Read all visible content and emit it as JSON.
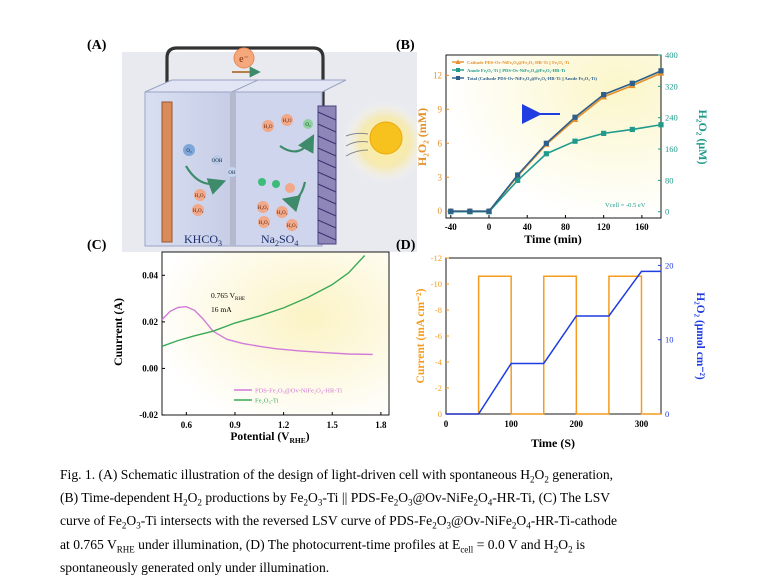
{
  "panels": {
    "A": {
      "label": "(A)",
      "electron": "e⁻",
      "left_electrolyte": "KHCO",
      "left_electrolyte_sub": "3",
      "right_electrolyte": "Na",
      "right_electrolyte_sub1": "2",
      "right_electrolyte_mid": "SO",
      "right_electrolyte_sub2": "4",
      "molecules": {
        "h2o": "H₂O",
        "o2": "O₂",
        "ooh": "OOH",
        "oh": "OH",
        "h2o2": "H₂O₂"
      }
    },
    "B": {
      "label": "(B)"
    },
    "C": {
      "label": "(C)"
    },
    "D": {
      "label": "(D)"
    }
  },
  "chart_data": [
    {
      "panel": "B",
      "type": "line",
      "xlabel": "Time (min)",
      "ylabel_left": "H₂O₂ (mM)",
      "ylabel_right": "H₂O₂ (μM)",
      "xlim": [
        -45,
        180
      ],
      "ylim_left": [
        -0.6,
        13.8
      ],
      "ylim_right": [
        -16,
        400
      ],
      "xticks": [
        -40,
        0,
        40,
        80,
        120,
        160
      ],
      "yticks_left": [
        0,
        3,
        6,
        9,
        12
      ],
      "yticks_right": [
        0,
        80,
        160,
        240,
        320,
        400
      ],
      "annotation": "Vcell = -0.5 eV",
      "legend_position": "top",
      "series": [
        {
          "name": "Cathode PDS-Ov-NiFe₂O₄@Fe₂O₃-HR-Ti || Fe₂O₃-Ti",
          "color": "#e5902c",
          "marker": "triangle",
          "axis": "left",
          "x": [
            -40,
            -20,
            0,
            30,
            60,
            90,
            120,
            150,
            180
          ],
          "y": [
            0,
            0,
            0,
            3.1,
            5.9,
            8.1,
            10.1,
            11.1,
            12.2
          ]
        },
        {
          "name": "Anode Fe₂O₃-Ti || PDS-Ov-NiFe₂O₄@Fe₂O₃-HR-Ti",
          "color": "#1f9a8c",
          "marker": "square",
          "axis": "right",
          "x": [
            -40,
            -20,
            0,
            30,
            60,
            90,
            120,
            150,
            180
          ],
          "y": [
            0,
            0,
            0,
            80,
            148,
            180,
            200,
            210,
            222
          ]
        },
        {
          "name": "Total (Cathode PDS-Ov-NiFe₂O₄@Fe₂O₃-HR-Ti || Anode Fe₂O₃-Ti)",
          "color": "#2d5f8a",
          "marker": "square",
          "axis": "left",
          "x": [
            -40,
            -20,
            0,
            30,
            60,
            90,
            120,
            150,
            180
          ],
          "y": [
            0,
            0,
            0,
            3.2,
            6.0,
            8.3,
            10.3,
            11.3,
            12.4
          ]
        }
      ]
    },
    {
      "panel": "C",
      "type": "line",
      "xlabel": "Potential (V",
      "xlabel_sub": "RHE",
      "xlabel_end": ")",
      "ylabel": "Cuurrent (A)",
      "xlim": [
        0.45,
        1.85
      ],
      "ylim": [
        -0.02,
        0.05
      ],
      "xticks": [
        0.6,
        0.9,
        1.2,
        1.5,
        1.8
      ],
      "yticks": [
        -0.02,
        0.0,
        0.02,
        0.04
      ],
      "annotation_1": "0.765 V",
      "annotation_1_sub": "RHE",
      "annotation_2": "16 mA",
      "legend_position": "bottom-right",
      "series": [
        {
          "name": "PDS-Fe₂O₃@Ov-NiFe₂O₄-HR-Ti",
          "color": "#d27ad8",
          "x": [
            0.45,
            0.5,
            0.55,
            0.6,
            0.65,
            0.7,
            0.765,
            0.85,
            0.95,
            1.05,
            1.15,
            1.3,
            1.45,
            1.6,
            1.75
          ],
          "y": [
            0.021,
            0.0245,
            0.0262,
            0.0265,
            0.025,
            0.0215,
            0.016,
            0.0125,
            0.0107,
            0.0095,
            0.0085,
            0.0075,
            0.0068,
            0.0062,
            0.006
          ]
        },
        {
          "name": "Fe₂O₃-Ti",
          "color": "#3aa957",
          "x": [
            0.45,
            0.55,
            0.65,
            0.765,
            0.9,
            1.05,
            1.2,
            1.35,
            1.5,
            1.6,
            1.7
          ],
          "y": [
            0.0095,
            0.012,
            0.014,
            0.016,
            0.0195,
            0.0225,
            0.026,
            0.0305,
            0.036,
            0.041,
            0.0485
          ]
        }
      ]
    },
    {
      "panel": "D",
      "type": "line",
      "xlabel": "Time (S)",
      "ylabel_left": "Current (mA cm⁻²)",
      "ylabel_right": "H₂O₂ (μmol cm⁻²)",
      "xlim": [
        0,
        330
      ],
      "ylim_left": [
        -12,
        0
      ],
      "ylim_right": [
        0,
        21
      ],
      "xticks": [
        0,
        100,
        200,
        300
      ],
      "yticks_left": [
        -12,
        -10,
        -8,
        -6,
        -4,
        -2,
        0
      ],
      "yticks_right": [
        0,
        10,
        20
      ],
      "series": [
        {
          "name": "Current",
          "color": "#f39c1f",
          "axis": "left",
          "x": [
            0,
            50,
            50.1,
            100,
            100.1,
            150,
            150.1,
            200,
            200.1,
            250,
            250.1,
            300,
            300.1,
            330
          ],
          "y": [
            0,
            0,
            -10.6,
            -10.6,
            0,
            0,
            -10.6,
            -10.6,
            0,
            0,
            -10.6,
            -10.6,
            0,
            0
          ]
        },
        {
          "name": "H₂O₂",
          "color": "#1f3de0",
          "axis": "right",
          "x": [
            0,
            50,
            100,
            150,
            200,
            250,
            300,
            330
          ],
          "y": [
            0,
            0,
            6.8,
            6.8,
            13.2,
            13.2,
            19.2,
            19.2
          ]
        }
      ]
    }
  ],
  "caption": {
    "l1a": "Fig. 1.  (A) Schematic illustration of the design of light-driven cell with spontaneous H",
    "l1s1": "2",
    "l1b": "O",
    "l1s2": "2",
    "l1c": " generation,",
    "l2a": "(B) Time-dependent H",
    "l2s1": "2",
    "l2b": "O",
    "l2s2": "2",
    "l2c": " productions by Fe",
    "l2s3": "2",
    "l2d": "O",
    "l2s4": "3",
    "l2e": "-Ti || PDS-Fe",
    "l2s5": "2",
    "l2f": "O",
    "l2s6": "3",
    "l2g": "@Ov-NiFe",
    "l2s7": "2",
    "l2h": "O",
    "l2s8": "4",
    "l2i": "-HR-Ti, (C) The LSV",
    "l3a": "curve of Fe",
    "l3s1": "2",
    "l3b": "O",
    "l3s2": "3",
    "l3c": "-Ti intersects with the reversed LSV curve of PDS-Fe",
    "l3s3": "2",
    "l3d": "O",
    "l3s4": "3",
    "l3e": "@Ov-NiFe",
    "l3s5": "2",
    "l3f": "O",
    "l3s6": "4",
    "l3g": "-HR-Ti-cathode",
    "l4a": "at 0.765 V",
    "l4s1": "RHE",
    "l4b": " under illumination, (D) The photocurrent-time profiles at E",
    "l4s2": "cell",
    "l4c": " = 0.0 V and H",
    "l4s3": "2",
    "l4d": "O",
    "l4s4": "2",
    "l4e": " is",
    "l5": "spontaneously generated only under illumination."
  }
}
